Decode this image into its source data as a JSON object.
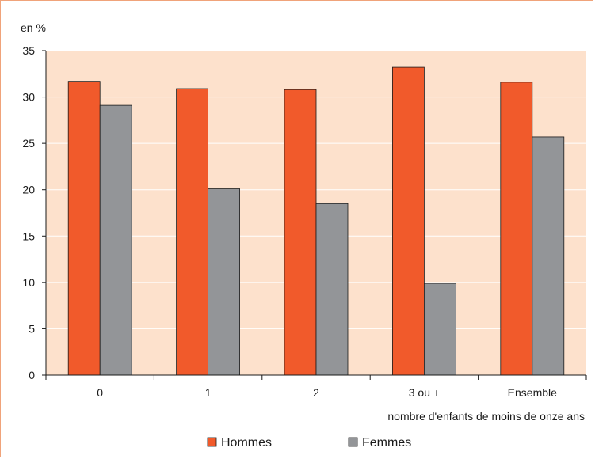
{
  "chart_data": {
    "type": "bar",
    "unit_label": "en %",
    "xlabel": "nombre d'enfants de moins de onze ans",
    "categories": [
      "0",
      "1",
      "2",
      "3 ou +",
      "Ensemble"
    ],
    "series": [
      {
        "name": "Hommes",
        "color": "#f15a2b",
        "values": [
          31.7,
          30.9,
          30.8,
          33.2,
          31.6
        ]
      },
      {
        "name": "Femmes",
        "color": "#939598",
        "values": [
          29.1,
          20.1,
          18.5,
          9.9,
          25.7
        ]
      }
    ],
    "ylim": [
      0,
      35
    ],
    "yticks": [
      0,
      5,
      10,
      15,
      20,
      25,
      30,
      35
    ],
    "grid": true,
    "legend_position": "bottom",
    "plot_background": "#fde1cc"
  }
}
